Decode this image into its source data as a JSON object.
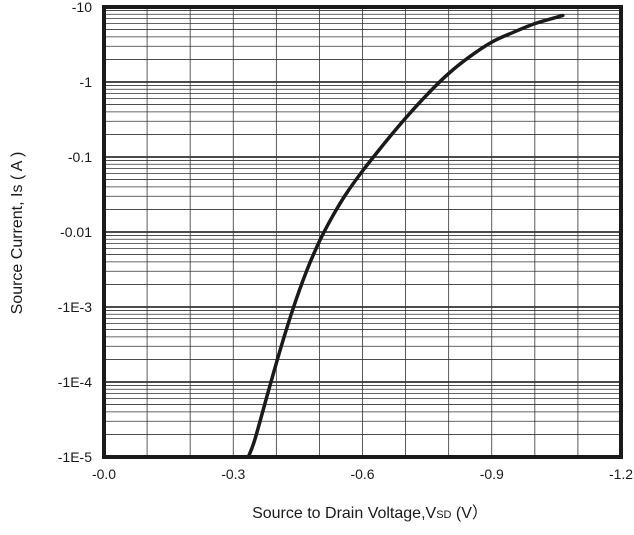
{
  "chart_data": {
    "type": "line",
    "xlabel": "Source to Drain Voltage,V",
    "xlabel_subscript": "SD",
    "xlabel_unit": " (V）",
    "ylabel": "Source Current, Is ( A )",
    "x_reversed": true,
    "y_scale": "log",
    "xlim": [
      0,
      -1.2
    ],
    "ylim": [
      -1e-05,
      -10
    ],
    "grid": true,
    "x_ticks": [
      "-0.0",
      "-0.3",
      "-0.6",
      "-0.9",
      "-1.2"
    ],
    "y_ticks": [
      "-10",
      "-1",
      "-0.1",
      "-0.01",
      "-1E-3",
      "-1E-4",
      "-1E-5"
    ],
    "series": [
      {
        "x": [
          -0.335,
          -0.35,
          -0.38,
          -0.41,
          -0.44,
          -0.47,
          -0.5,
          -0.53,
          -0.56,
          -0.6,
          -0.65,
          -0.7,
          -0.75,
          -0.8,
          -0.85,
          -0.9,
          -0.95,
          -1.0,
          -1.05,
          -1.065
        ],
        "y": [
          -1e-05,
          -1.7e-05,
          -7e-05,
          -0.00028,
          -0.001,
          -0.003,
          -0.0075,
          -0.016,
          -0.031,
          -0.065,
          -0.15,
          -0.33,
          -0.68,
          -1.3,
          -2.2,
          -3.4,
          -4.6,
          -6.0,
          -7.3,
          -7.7
        ]
      }
    ],
    "colors": {
      "line": "#1a1a1a",
      "grid": "#333333",
      "frame": "#1a1a1a"
    }
  }
}
